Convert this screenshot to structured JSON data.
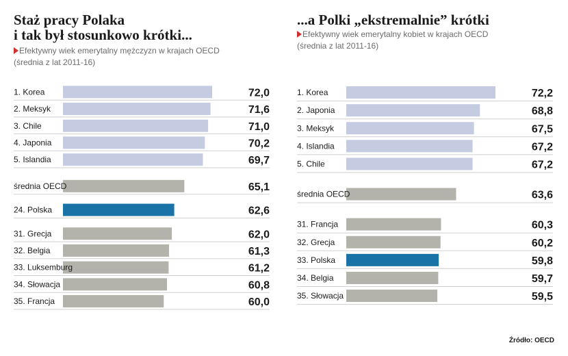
{
  "chart_data": [
    {
      "type": "bar",
      "orientation": "horizontal",
      "title": "Staż pracy Polaka\ni tak był stosunkowo krótki...",
      "subtitle": "Efektywny wiek emerytalny mężczyzn w krajach OECD",
      "subtitle2": "(średnia z lat 2011-16)",
      "categories": [
        "1. Korea",
        "2. Meksyk",
        "3. Chile",
        "4. Japonia",
        "5. Islandia",
        "średnia OECD",
        "24. Polska",
        "31. Grecja",
        "32. Belgia",
        "33. Luksemburg",
        "34. Słowacja",
        "35. Francja"
      ],
      "values": [
        72.0,
        71.6,
        71.0,
        70.2,
        69.7,
        65.1,
        62.6,
        62.0,
        61.3,
        61.2,
        60.8,
        60.0
      ],
      "value_labels": [
        "72,0",
        "71,6",
        "71,0",
        "70,2",
        "69,7",
        "65,1",
        "62,6",
        "62,0",
        "61,3",
        "61,2",
        "60,8",
        "60,0"
      ],
      "groups": [
        "top",
        "top",
        "top",
        "top",
        "top",
        "avg",
        "pl",
        "bottom",
        "bottom",
        "bottom",
        "bottom",
        "bottom"
      ],
      "xlim": [
        35,
        72
      ],
      "colors": {
        "top": "#c5cbe1",
        "avg": "#b3b2ab",
        "pl": "#1a73a6",
        "bottom": "#b3b2ab"
      }
    },
    {
      "type": "bar",
      "orientation": "horizontal",
      "title": "...a Polki „ekstremalnie” krótki",
      "subtitle": "Efektywny wiek emerytalny kobiet w krajach OECD",
      "subtitle2": "(średnia z lat 2011-16)",
      "categories": [
        "1. Korea",
        "2. Japonia",
        "3. Meksyk",
        "4. Islandia",
        "5. Chile",
        "średnia OECD",
        "31. Francja",
        "32. Grecja",
        "33. Polska",
        "34. Belgia",
        "35. Słowacja"
      ],
      "values": [
        72.2,
        68.8,
        67.5,
        67.2,
        67.2,
        63.6,
        60.3,
        60.2,
        59.8,
        59.7,
        59.5
      ],
      "value_labels": [
        "72,2",
        "68,8",
        "67,5",
        "67,2",
        "67,2",
        "63,6",
        "60,3",
        "60,2",
        "59,8",
        "59,7",
        "59,5"
      ],
      "groups": [
        "top",
        "top",
        "top",
        "top",
        "top",
        "avg",
        "bottom",
        "bottom",
        "pl",
        "bottom",
        "bottom"
      ],
      "xlim": [
        39.6,
        72.2
      ],
      "colors": {
        "top": "#c5cbe1",
        "avg": "#b3b2ab",
        "pl": "#1a73a6",
        "bottom": "#b3b2ab"
      }
    }
  ],
  "source": "Źródło: OECD"
}
